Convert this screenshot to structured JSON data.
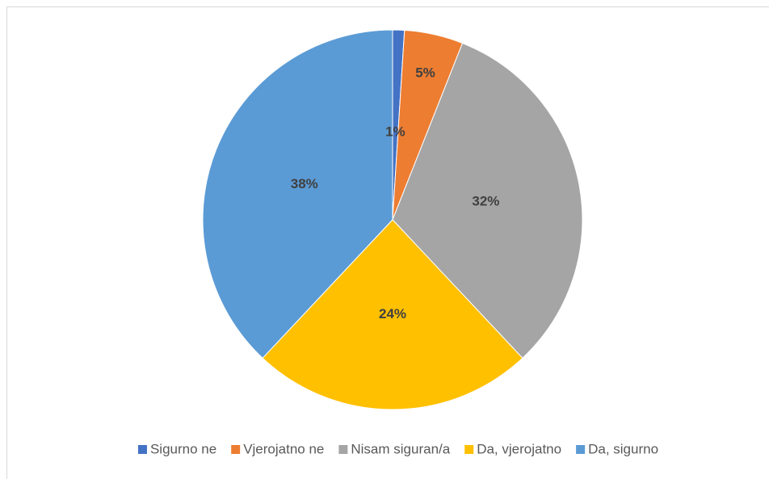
{
  "chart_data": {
    "type": "pie",
    "categories": [
      "Sigurno ne",
      "Vjerojatno ne",
      "Nisam siguran/a",
      "Da, vjerojatno",
      "Da, sigurno"
    ],
    "values": [
      1,
      5,
      32,
      24,
      38
    ],
    "value_labels": [
      "1%",
      "5%",
      "32%",
      "24%",
      "38%"
    ],
    "colors": [
      "#4472c4",
      "#ed7d31",
      "#a5a5a5",
      "#ffc000",
      "#5b9bd5"
    ],
    "legend": "bottom"
  }
}
